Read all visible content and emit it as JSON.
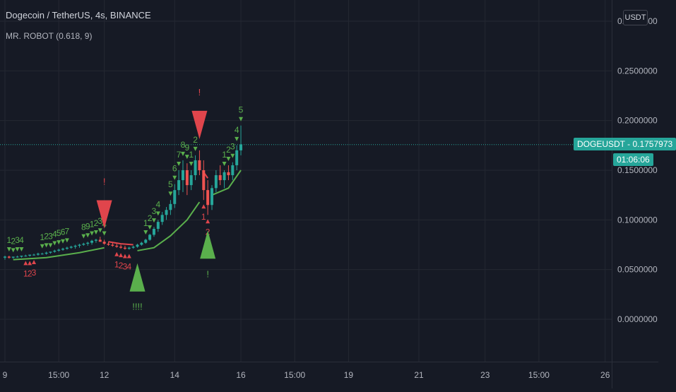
{
  "header": {
    "title": "Dogecoin / TetherUS, 4s, BINANCE",
    "indicator": "MR. ROBOT (0.618, 9)"
  },
  "currency_button": "USDT",
  "price_tag": {
    "symbol_value": "DOGEUSDT - 0.1757973",
    "countdown": "01:06:06"
  },
  "colors": {
    "background": "#161a25",
    "grid": "#242832",
    "up": "#26a69a",
    "down": "#ef5350",
    "signal_green": "#5aaf4c",
    "signal_red": "#e0454c",
    "axis_text": "#b2b5be"
  },
  "chart_data": {
    "type": "candlestick",
    "y_tick_labels": [
      "0.3000000",
      "0.2500000",
      "0.2000000",
      "0.1500000",
      "0.1000000",
      "0.0500000",
      "0.0000000"
    ],
    "y_tick_values": [
      0.3,
      0.25,
      0.2,
      0.15,
      0.1,
      0.05,
      0.0
    ],
    "ylim": [
      -0.03,
      0.31
    ],
    "x_tick_labels": [
      "9",
      "15:00",
      "12",
      "14",
      "16",
      "15:00",
      "19",
      "21",
      "23",
      "15:00",
      "26"
    ],
    "x_tick_slots": [
      0,
      13,
      24,
      41,
      57,
      70,
      83,
      100,
      116,
      129,
      145
    ],
    "last_price": 0.1757973,
    "candles": [
      [
        0.062,
        0.064,
        0.06,
        0.063
      ],
      [
        0.063,
        0.064,
        0.061,
        0.062
      ],
      [
        0.062,
        0.063,
        0.061,
        0.063
      ],
      [
        0.063,
        0.064,
        0.062,
        0.063
      ],
      [
        0.063,
        0.064,
        0.062,
        0.064
      ],
      [
        0.064,
        0.065,
        0.063,
        0.064
      ],
      [
        0.064,
        0.065,
        0.063,
        0.065
      ],
      [
        0.065,
        0.066,
        0.064,
        0.065
      ],
      [
        0.065,
        0.067,
        0.064,
        0.066
      ],
      [
        0.066,
        0.067,
        0.065,
        0.066
      ],
      [
        0.066,
        0.068,
        0.065,
        0.067
      ],
      [
        0.067,
        0.068,
        0.066,
        0.068
      ],
      [
        0.068,
        0.07,
        0.067,
        0.069
      ],
      [
        0.069,
        0.071,
        0.068,
        0.07
      ],
      [
        0.07,
        0.072,
        0.069,
        0.071
      ],
      [
        0.071,
        0.073,
        0.07,
        0.072
      ],
      [
        0.072,
        0.074,
        0.071,
        0.073
      ],
      [
        0.073,
        0.075,
        0.071,
        0.074
      ],
      [
        0.074,
        0.076,
        0.072,
        0.075
      ],
      [
        0.075,
        0.077,
        0.074,
        0.076
      ],
      [
        0.076,
        0.078,
        0.074,
        0.077
      ],
      [
        0.077,
        0.08,
        0.075,
        0.079
      ],
      [
        0.079,
        0.081,
        0.077,
        0.08
      ],
      [
        0.08,
        0.083,
        0.078,
        0.078
      ],
      [
        0.078,
        0.08,
        0.075,
        0.076
      ],
      [
        0.076,
        0.078,
        0.074,
        0.075
      ],
      [
        0.075,
        0.077,
        0.073,
        0.074
      ],
      [
        0.074,
        0.076,
        0.072,
        0.073
      ],
      [
        0.073,
        0.075,
        0.071,
        0.072
      ],
      [
        0.072,
        0.074,
        0.07,
        0.071
      ],
      [
        0.071,
        0.073,
        0.07,
        0.072
      ],
      [
        0.072,
        0.074,
        0.071,
        0.073
      ],
      [
        0.073,
        0.076,
        0.072,
        0.075
      ],
      [
        0.075,
        0.078,
        0.074,
        0.077
      ],
      [
        0.077,
        0.081,
        0.076,
        0.08
      ],
      [
        0.08,
        0.086,
        0.079,
        0.085
      ],
      [
        0.085,
        0.093,
        0.083,
        0.091
      ],
      [
        0.091,
        0.1,
        0.088,
        0.098
      ],
      [
        0.098,
        0.108,
        0.095,
        0.105
      ],
      [
        0.105,
        0.113,
        0.1,
        0.11
      ],
      [
        0.11,
        0.12,
        0.105,
        0.116
      ],
      [
        0.116,
        0.136,
        0.112,
        0.13
      ],
      [
        0.13,
        0.15,
        0.125,
        0.14
      ],
      [
        0.14,
        0.16,
        0.128,
        0.15
      ],
      [
        0.15,
        0.157,
        0.125,
        0.135
      ],
      [
        0.135,
        0.15,
        0.13,
        0.145
      ],
      [
        0.145,
        0.165,
        0.14,
        0.16
      ],
      [
        0.16,
        0.17,
        0.145,
        0.15
      ],
      [
        0.15,
        0.16,
        0.12,
        0.13
      ],
      [
        0.13,
        0.14,
        0.105,
        0.115
      ],
      [
        0.115,
        0.135,
        0.11,
        0.132
      ],
      [
        0.132,
        0.15,
        0.128,
        0.145
      ],
      [
        0.145,
        0.155,
        0.135,
        0.14
      ],
      [
        0.14,
        0.15,
        0.132,
        0.148
      ],
      [
        0.148,
        0.155,
        0.14,
        0.145
      ],
      [
        0.145,
        0.158,
        0.14,
        0.155
      ],
      [
        0.155,
        0.175,
        0.15,
        0.17
      ],
      [
        0.17,
        0.195,
        0.165,
        0.176
      ]
    ],
    "supertrend": {
      "green_segments": [
        [
          [
            2,
            0.06
          ],
          [
            10,
            0.062
          ],
          [
            18,
            0.067
          ],
          [
            24,
            0.072
          ]
        ],
        [
          [
            32,
            0.069
          ],
          [
            36,
            0.072
          ],
          [
            40,
            0.084
          ],
          [
            44,
            0.1
          ],
          [
            47,
            0.118
          ]
        ],
        [
          [
            50,
            0.125
          ],
          [
            54,
            0.132
          ],
          [
            57,
            0.15
          ]
        ]
      ],
      "red_segments": [
        [
          [
            25,
            0.078
          ],
          [
            28,
            0.076
          ],
          [
            31,
            0.075
          ]
        ],
        [
          [
            48,
            0.148
          ],
          [
            49,
            0.142
          ]
        ]
      ]
    },
    "annotations": {
      "green_counts": [
        {
          "text": "1",
          "i": 1
        },
        {
          "text": "2",
          "i": 2
        },
        {
          "text": "3",
          "i": 3
        },
        {
          "text": "4",
          "i": 4
        },
        {
          "text": "1",
          "i": 9
        },
        {
          "text": "2",
          "i": 10
        },
        {
          "text": "3",
          "i": 11
        },
        {
          "text": "4",
          "i": 12
        },
        {
          "text": "5",
          "i": 13
        },
        {
          "text": "6",
          "i": 14
        },
        {
          "text": "7",
          "i": 15
        },
        {
          "text": "8",
          "i": 19
        },
        {
          "text": "9",
          "i": 20
        },
        {
          "text": "1",
          "i": 21
        },
        {
          "text": "2",
          "i": 22
        },
        {
          "text": "3",
          "i": 23
        },
        {
          "text": "4",
          "i": 24
        },
        {
          "text": "1",
          "i": 34
        },
        {
          "text": "2",
          "i": 35
        },
        {
          "text": "3",
          "i": 36
        },
        {
          "text": "4",
          "i": 37
        },
        {
          "text": "5",
          "i": 40
        },
        {
          "text": "6",
          "i": 41
        },
        {
          "text": "7",
          "i": 42
        },
        {
          "text": "8",
          "i": 43
        },
        {
          "text": "9",
          "i": 44
        },
        {
          "text": "1",
          "i": 45
        },
        {
          "text": "2",
          "i": 46
        },
        {
          "text": "1",
          "i": 53
        },
        {
          "text": "2",
          "i": 54
        },
        {
          "text": "3",
          "i": 55
        },
        {
          "text": "4",
          "i": 56
        },
        {
          "text": "5",
          "i": 57
        }
      ],
      "red_counts": [
        {
          "text": "1",
          "i": 5
        },
        {
          "text": "2",
          "i": 6
        },
        {
          "text": "3",
          "i": 7
        },
        {
          "text": "1",
          "i": 27
        },
        {
          "text": "2",
          "i": 28
        },
        {
          "text": "3",
          "i": 29
        },
        {
          "text": "4",
          "i": 30
        },
        {
          "text": "1",
          "i": 48
        },
        {
          "text": "2",
          "i": 49
        }
      ],
      "big_red_arrows": [
        {
          "i": 24,
          "label": "!"
        },
        {
          "i": 47,
          "label": "!"
        }
      ],
      "big_green_arrows": [
        {
          "i": 32,
          "label": "!!!!"
        },
        {
          "i": 49,
          "label": "!"
        }
      ]
    }
  }
}
